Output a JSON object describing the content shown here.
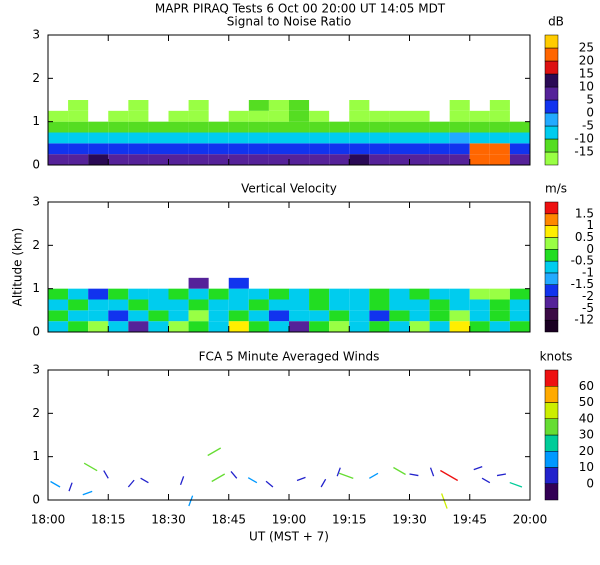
{
  "title": "MAPR PIRAQ Tests   6 Oct 00   20:00 UT   14:05   MDT",
  "xlabel": "UT  (MST + 7)",
  "chart_data": [
    {
      "type": "heatmap",
      "title": "Signal to Noise Ratio",
      "unit": "dB",
      "xlim": [
        0,
        120
      ],
      "ylim": [
        0,
        3
      ],
      "yticks": [
        0,
        1,
        2,
        3
      ],
      "xticks": [
        {
          "value": 0,
          "label": "18:00"
        },
        {
          "value": 15,
          "label": "18:15"
        },
        {
          "value": 30,
          "label": "18:30"
        },
        {
          "value": 45,
          "label": "18:45"
        },
        {
          "value": 60,
          "label": "19:00"
        },
        {
          "value": 75,
          "label": "19:15"
        },
        {
          "value": 90,
          "label": "19:30"
        },
        {
          "value": 105,
          "label": "19:45"
        },
        {
          "value": 120,
          "label": "20:00"
        }
      ],
      "levels": [
        -15,
        -10,
        -5,
        0,
        5,
        10,
        15,
        20,
        25
      ],
      "colors": [
        "#99ff44",
        "#55dd22",
        "#00ccee",
        "#22aaff",
        "#1133ee",
        "#552299",
        "#2a0a55",
        "#dd1111",
        "#ff6600",
        "#ffcc00"
      ],
      "x": [
        0,
        5,
        10,
        15,
        20,
        25,
        30,
        35,
        40,
        45,
        50,
        55,
        60,
        65,
        70,
        75,
        80,
        85,
        90,
        95,
        100,
        105,
        110,
        115
      ],
      "y": [
        0,
        0.25,
        0.5,
        0.75,
        1,
        1.25
      ],
      "z": [
        [
          7,
          7,
          12,
          7,
          7,
          7,
          7,
          7,
          7,
          7,
          7,
          7,
          7,
          7,
          7,
          12,
          7,
          7,
          7,
          7,
          7,
          20,
          20,
          7
        ],
        [
          2,
          2,
          2,
          2,
          2,
          2,
          2,
          2,
          2,
          2,
          2,
          2,
          2,
          2,
          2,
          2,
          2,
          2,
          2,
          2,
          2,
          20,
          20,
          2
        ],
        [
          -7,
          -7,
          -7,
          -7,
          -7,
          -7,
          -7,
          -7,
          -7,
          -7,
          -7,
          -7,
          -7,
          -7,
          -7,
          -7,
          -7,
          -7,
          -7,
          -7,
          -2,
          -7,
          -7,
          -7
        ],
        [
          -12,
          -12,
          -12,
          -12,
          -12,
          -12,
          -12,
          -12,
          -12,
          -12,
          -12,
          -12,
          -12,
          -12,
          -12,
          -12,
          -12,
          -12,
          -12,
          -12,
          -12,
          -12,
          -12,
          -12
        ],
        [
          -17,
          -17,
          null,
          -17,
          -17,
          null,
          -17,
          -17,
          null,
          -17,
          -17,
          -17,
          -12,
          -17,
          null,
          -17,
          -17,
          -17,
          -17,
          null,
          -17,
          -17,
          -17,
          null
        ],
        [
          null,
          -17,
          null,
          null,
          -17,
          null,
          null,
          -17,
          null,
          null,
          -12,
          -17,
          -12,
          null,
          null,
          -17,
          null,
          null,
          null,
          null,
          -17,
          null,
          -17,
          null
        ]
      ]
    },
    {
      "type": "heatmap",
      "title": "Vertical Velocity",
      "unit": "m/s",
      "ylabel": "Altitude (km)",
      "xlim": [
        0,
        120
      ],
      "ylim": [
        0,
        3
      ],
      "yticks": [
        0,
        1,
        2,
        3
      ],
      "xticks": [
        {
          "value": 0,
          "label": "18:00"
        },
        {
          "value": 15,
          "label": "18:15"
        },
        {
          "value": 30,
          "label": "18:30"
        },
        {
          "value": 45,
          "label": "18:45"
        },
        {
          "value": 60,
          "label": "19:00"
        },
        {
          "value": 75,
          "label": "19:15"
        },
        {
          "value": 90,
          "label": "19:30"
        },
        {
          "value": 105,
          "label": "19:45"
        },
        {
          "value": 120,
          "label": "20:00"
        }
      ],
      "levels": [
        -12,
        -5,
        -2,
        -1.5,
        -1,
        -0.5,
        0,
        0.5,
        1,
        1.5
      ],
      "colors": [
        "#1a0022",
        "#3a0a44",
        "#552299",
        "#1133ee",
        "#22aaff",
        "#00ccee",
        "#22dd22",
        "#99ff44",
        "#ffee00",
        "#ff8800",
        "#ee1111"
      ],
      "x": [
        0,
        5,
        10,
        15,
        20,
        25,
        30,
        35,
        40,
        45,
        50,
        55,
        60,
        65,
        70,
        75,
        80,
        85,
        90,
        95,
        100,
        105,
        110,
        115
      ],
      "y": [
        0,
        0.25,
        0.5,
        0.75,
        1
      ],
      "z": [
        [
          -0.7,
          -0.3,
          0.3,
          -0.7,
          -3,
          -0.7,
          0.3,
          -0.3,
          -0.7,
          0.8,
          -0.3,
          -0.7,
          -3,
          -0.3,
          0.3,
          -0.7,
          -0.3,
          -0.7,
          0.3,
          -0.7,
          0.8,
          -0.3,
          -0.7,
          -0.3
        ],
        [
          -0.3,
          -0.7,
          -0.7,
          -1.7,
          -0.7,
          -0.3,
          -0.7,
          0.3,
          -0.7,
          -0.3,
          -0.7,
          -1.7,
          -0.7,
          -0.7,
          -0.3,
          -0.7,
          -1.7,
          -0.3,
          -0.7,
          -0.3,
          0.3,
          -0.7,
          -0.3,
          -0.7
        ],
        [
          -0.7,
          -0.3,
          -0.7,
          -0.7,
          -0.3,
          -0.7,
          -0.7,
          -0.3,
          -0.7,
          -0.7,
          -0.3,
          -0.7,
          -0.7,
          -0.3,
          -0.7,
          -0.7,
          -0.3,
          -0.7,
          -0.7,
          -0.3,
          -0.7,
          -0.7,
          -0.3,
          -0.7
        ],
        [
          -0.3,
          -0.7,
          -1.7,
          -0.3,
          -0.7,
          -0.7,
          -0.3,
          -0.7,
          -0.3,
          -0.7,
          -0.7,
          -0.3,
          -0.7,
          -0.3,
          -0.7,
          -0.7,
          -0.3,
          -0.7,
          -0.3,
          -0.7,
          -0.7,
          0.3,
          0.3,
          -0.3
        ],
        [
          null,
          null,
          null,
          null,
          null,
          null,
          null,
          -3,
          null,
          -1.7,
          null,
          null,
          null,
          null,
          null,
          null,
          null,
          null,
          null,
          null,
          null,
          null,
          null,
          null
        ]
      ]
    },
    {
      "type": "barbs",
      "title": "FCA 5 Minute Averaged Winds",
      "unit": "knots",
      "xlim": [
        0,
        120
      ],
      "ylim": [
        0,
        3
      ],
      "yticks": [
        0,
        1,
        2,
        3
      ],
      "xticks": [
        {
          "value": 0,
          "label": "18:00"
        },
        {
          "value": 15,
          "label": "18:15"
        },
        {
          "value": 30,
          "label": "18:30"
        },
        {
          "value": 45,
          "label": "18:45"
        },
        {
          "value": 60,
          "label": "19:00"
        },
        {
          "value": 75,
          "label": "19:15"
        },
        {
          "value": 90,
          "label": "19:30"
        },
        {
          "value": 105,
          "label": "19:45"
        },
        {
          "value": 120,
          "label": "20:00"
        }
      ],
      "levels": [
        0,
        10,
        20,
        30,
        40,
        50,
        60
      ],
      "colors": [
        "#330055",
        "#2222cc",
        "#0099ff",
        "#00cc99",
        "#66dd33",
        "#ccee00",
        "#ffaa00",
        "#ee1111"
      ],
      "x": [
        3,
        6,
        9,
        11,
        15,
        20,
        25,
        33,
        36,
        43,
        44,
        47,
        52,
        56,
        62,
        68,
        72,
        76,
        80,
        86,
        90,
        96,
        98,
        102,
        106,
        110,
        114,
        118
      ],
      "y": [
        0.3,
        0.4,
        0.85,
        0.2,
        0.5,
        0.3,
        0.4,
        0.35,
        0.1,
        1.2,
        0.6,
        0.5,
        0.4,
        0.3,
        0.45,
        0.3,
        0.55,
        0.5,
        0.5,
        0.75,
        0.6,
        0.55,
        0.15,
        0.45,
        0.7,
        0.4,
        0.6,
        0.3
      ],
      "speed": [
        15,
        5,
        35,
        10,
        5,
        5,
        5,
        5,
        15,
        35,
        35,
        5,
        10,
        5,
        5,
        5,
        5,
        35,
        10,
        30,
        5,
        5,
        40,
        60,
        5,
        5,
        5,
        25
      ],
      "direction": [
        300,
        200,
        120,
        250,
        330,
        40,
        300,
        20,
        200,
        240,
        240,
        320,
        300,
        310,
        70,
        30,
        20,
        290,
        60,
        120,
        100,
        340,
        160,
        300,
        70,
        300,
        260,
        290
      ]
    }
  ]
}
